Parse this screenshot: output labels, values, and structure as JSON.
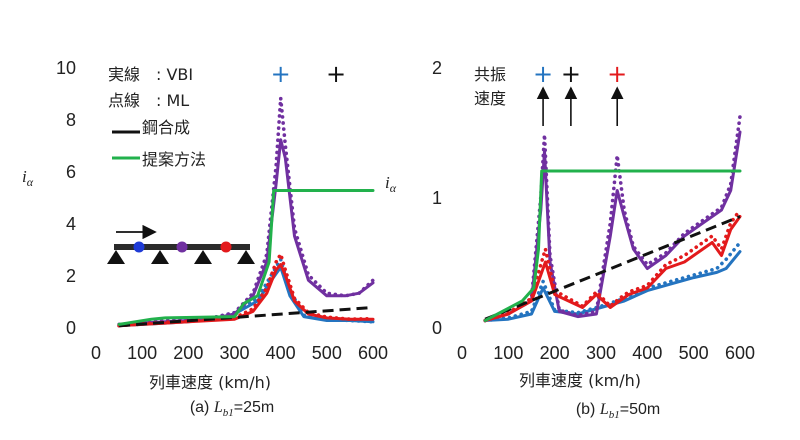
{
  "colors": {
    "blue": "#2474c0",
    "purple": "#7030a0",
    "red": "#e31a1c",
    "green": "#22b14c",
    "black": "#111111"
  },
  "chart_data": [
    {
      "type": "line",
      "caption_prefix": "(a) ",
      "caption_var": "L",
      "caption_sub": "b1",
      "caption_suffix": "=25m",
      "xlabel": "列車速度 (km/h)",
      "ylabel": "i",
      "ylabel_sub": "α",
      "xlim": [
        0,
        600
      ],
      "ylim": [
        0,
        10
      ],
      "xticks": [
        "0",
        "100",
        "200",
        "300",
        "400",
        "500",
        "600"
      ],
      "yticks": [
        "0",
        "2",
        "4",
        "6",
        "8",
        "10"
      ],
      "legend": {
        "line1": "実線　: VBI",
        "line2": "点線　: ML",
        "steel": "鋼合成",
        "proposed": "提案方法"
      },
      "resonance_markers": [
        {
          "x": 400,
          "symbol": "+",
          "color": "blue"
        },
        {
          "x": 520,
          "symbol": "+",
          "color": "black"
        }
      ],
      "series": [
        {
          "key": "blue_vbi",
          "color": "blue",
          "style": "solid",
          "x": [
            50,
            100,
            150,
            200,
            250,
            300,
            350,
            380,
            400,
            420,
            450,
            500,
            550,
            600
          ],
          "y": [
            0.05,
            0.1,
            0.15,
            0.2,
            0.3,
            0.5,
            1.0,
            1.8,
            2.3,
            1.2,
            0.4,
            0.25,
            0.25,
            0.2
          ]
        },
        {
          "key": "blue_ml",
          "color": "blue",
          "style": "dotted",
          "x": [
            50,
            100,
            150,
            200,
            250,
            300,
            350,
            380,
            400,
            420,
            450,
            500,
            550,
            600
          ],
          "y": [
            0.05,
            0.12,
            0.18,
            0.22,
            0.35,
            0.55,
            1.1,
            2.0,
            2.6,
            1.4,
            0.45,
            0.28,
            0.25,
            0.2
          ]
        },
        {
          "key": "purple_vbi",
          "color": "purple",
          "style": "solid",
          "x": [
            50,
            100,
            150,
            200,
            250,
            300,
            340,
            370,
            390,
            400,
            410,
            430,
            460,
            500,
            540,
            570,
            600
          ],
          "y": [
            0.1,
            0.15,
            0.2,
            0.25,
            0.3,
            0.5,
            1.2,
            2.5,
            5.5,
            7.2,
            6.5,
            3.5,
            1.8,
            1.2,
            1.2,
            1.3,
            1.7
          ]
        },
        {
          "key": "purple_ml",
          "color": "purple",
          "style": "dotted",
          "x": [
            50,
            100,
            150,
            200,
            250,
            300,
            340,
            370,
            390,
            400,
            410,
            430,
            460,
            500,
            540,
            570,
            600
          ],
          "y": [
            0.1,
            0.18,
            0.25,
            0.28,
            0.35,
            0.55,
            1.3,
            2.8,
            6.2,
            8.8,
            7.0,
            3.8,
            2.0,
            1.3,
            1.2,
            1.3,
            1.8
          ]
        },
        {
          "key": "red_vbi",
          "color": "red",
          "style": "solid",
          "x": [
            50,
            100,
            150,
            200,
            250,
            300,
            340,
            370,
            390,
            400,
            410,
            430,
            460,
            500,
            550,
            600
          ],
          "y": [
            0.05,
            0.1,
            0.15,
            0.2,
            0.25,
            0.3,
            0.6,
            1.3,
            2.2,
            2.4,
            2.0,
            1.0,
            0.5,
            0.35,
            0.3,
            0.3
          ]
        },
        {
          "key": "red_ml",
          "color": "red",
          "style": "dotted",
          "x": [
            50,
            100,
            150,
            200,
            250,
            300,
            340,
            370,
            390,
            400,
            410,
            430,
            460,
            500,
            550,
            600
          ],
          "y": [
            0.05,
            0.12,
            0.18,
            0.22,
            0.28,
            0.35,
            0.7,
            1.5,
            2.5,
            2.8,
            2.2,
            1.1,
            0.55,
            0.38,
            0.3,
            0.32
          ]
        },
        {
          "key": "steel",
          "color": "black",
          "style": "dashed",
          "x": [
            50,
            600
          ],
          "y": [
            0.05,
            0.75
          ]
        },
        {
          "key": "proposed",
          "color": "green",
          "style": "solid",
          "x": [
            50,
            120,
            150,
            300,
            320,
            350,
            375,
            385,
            600
          ],
          "y": [
            0.1,
            0.3,
            0.35,
            0.4,
            0.9,
            1.2,
            2.5,
            5.25,
            5.25
          ]
        }
      ]
    },
    {
      "type": "line",
      "caption_prefix": "(b) ",
      "caption_var": "L",
      "caption_sub": "b1",
      "caption_suffix": "=50m",
      "xlabel": "列車速度 (km/h)",
      "ylabel": "i",
      "ylabel_sub": "α",
      "xlim": [
        0,
        600
      ],
      "ylim": [
        0,
        2
      ],
      "xticks": [
        "0",
        "100",
        "200",
        "300",
        "400",
        "500",
        "600"
      ],
      "yticks": [
        "0",
        "1",
        "2"
      ],
      "resonance_label_1": "共振",
      "resonance_label_2": "速度",
      "resonance_markers": [
        {
          "x": 175,
          "symbol": "+",
          "color": "blue"
        },
        {
          "x": 235,
          "symbol": "+",
          "color": "black"
        },
        {
          "x": 335,
          "symbol": "+",
          "color": "red"
        }
      ],
      "series": [
        {
          "key": "blue_vbi",
          "color": "blue",
          "style": "solid",
          "x": [
            50,
            100,
            150,
            175,
            200,
            250,
            300,
            350,
            400,
            450,
            500,
            550,
            570,
            600
          ],
          "y": [
            0.05,
            0.06,
            0.1,
            0.3,
            0.12,
            0.1,
            0.15,
            0.2,
            0.28,
            0.33,
            0.38,
            0.42,
            0.45,
            0.58
          ]
        },
        {
          "key": "blue_ml",
          "color": "blue",
          "style": "dotted",
          "x": [
            50,
            100,
            150,
            175,
            200,
            250,
            300,
            350,
            400,
            450,
            500,
            550,
            570,
            600
          ],
          "y": [
            0.05,
            0.07,
            0.12,
            0.35,
            0.13,
            0.11,
            0.16,
            0.22,
            0.3,
            0.35,
            0.4,
            0.45,
            0.52,
            0.65
          ]
        },
        {
          "key": "purple_vbi",
          "color": "purple",
          "style": "solid",
          "x": [
            50,
            100,
            150,
            170,
            178,
            190,
            210,
            250,
            290,
            320,
            335,
            350,
            370,
            400,
            440,
            480,
            520,
            560,
            580,
            600
          ],
          "y": [
            0.05,
            0.1,
            0.2,
            0.9,
            1.35,
            0.5,
            0.12,
            0.08,
            0.1,
            0.7,
            1.05,
            0.85,
            0.6,
            0.45,
            0.55,
            0.7,
            0.8,
            0.9,
            1.05,
            1.5
          ]
        },
        {
          "key": "purple_ml",
          "color": "purple",
          "style": "dotted",
          "x": [
            50,
            100,
            150,
            170,
            178,
            190,
            210,
            250,
            290,
            320,
            335,
            350,
            370,
            400,
            440,
            480,
            520,
            560,
            580,
            600
          ],
          "y": [
            0.05,
            0.1,
            0.22,
            1.0,
            1.48,
            0.55,
            0.13,
            0.09,
            0.12,
            0.8,
            1.32,
            0.9,
            0.62,
            0.48,
            0.57,
            0.72,
            0.82,
            0.92,
            1.1,
            1.62
          ]
        },
        {
          "key": "red_vbi",
          "color": "red",
          "style": "solid",
          "x": [
            50,
            100,
            150,
            170,
            180,
            200,
            230,
            260,
            290,
            320,
            340,
            360,
            400,
            440,
            480,
            520,
            540,
            560,
            580,
            600
          ],
          "y": [
            0.05,
            0.1,
            0.2,
            0.4,
            0.5,
            0.25,
            0.2,
            0.15,
            0.25,
            0.15,
            0.2,
            0.25,
            0.3,
            0.45,
            0.5,
            0.6,
            0.65,
            0.55,
            0.75,
            0.85
          ]
        },
        {
          "key": "red_ml",
          "color": "red",
          "style": "dotted",
          "x": [
            50,
            100,
            150,
            170,
            180,
            200,
            230,
            260,
            290,
            320,
            340,
            360,
            400,
            440,
            480,
            520,
            540,
            560,
            580,
            600
          ],
          "y": [
            0.05,
            0.11,
            0.22,
            0.48,
            0.6,
            0.28,
            0.22,
            0.16,
            0.27,
            0.16,
            0.22,
            0.27,
            0.32,
            0.48,
            0.55,
            0.65,
            0.7,
            0.6,
            0.8,
            0.9
          ]
        },
        {
          "key": "steel",
          "color": "black",
          "style": "dashed",
          "x": [
            50,
            600
          ],
          "y": [
            0.06,
            0.85
          ]
        },
        {
          "key": "proposed",
          "color": "green",
          "style": "solid",
          "x": [
            50,
            130,
            155,
            165,
            172,
            600
          ],
          "y": [
            0.05,
            0.2,
            0.3,
            0.6,
            1.2,
            1.2
          ]
        }
      ]
    }
  ]
}
